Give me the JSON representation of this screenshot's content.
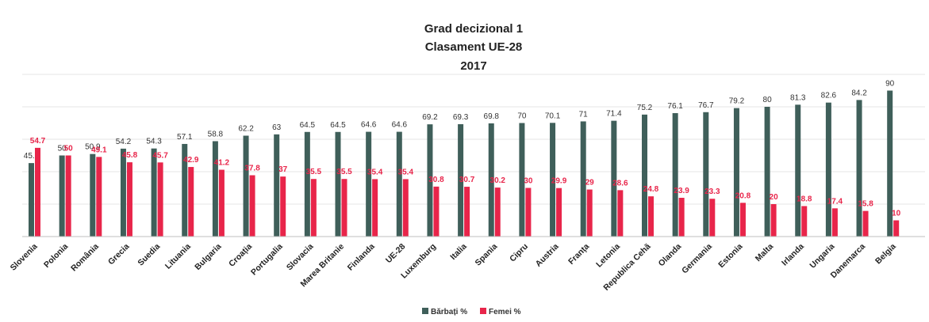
{
  "chart_data": {
    "type": "bar",
    "title": [
      "Grad decizional 1",
      "Clasament UE-28",
      "2017"
    ],
    "categories": [
      "Slovenia",
      "Polonia",
      "România",
      "Grecia",
      "Suedia",
      "Lituania",
      "Bulgaria",
      "Croația",
      "Portugalia",
      "Slovacia",
      "Marea Britanie",
      "Finlanda",
      "UE-28",
      "Luxemburg",
      "Italia",
      "Spania",
      "Cipru",
      "Austria",
      "Franța",
      "Letonia",
      "Republica Cehă",
      "Olanda",
      "Germania",
      "Estonia",
      "Malta",
      "Irlanda",
      "Ungaria",
      "Danemarca",
      "Belgia"
    ],
    "series": [
      {
        "name": "Bărbați %",
        "color": "#3f5f5a",
        "label_color": "#333333",
        "values": [
          45.3,
          50,
          50.9,
          54.2,
          54.3,
          57.1,
          58.8,
          62.2,
          63,
          64.5,
          64.5,
          64.6,
          64.6,
          69.2,
          69.3,
          69.8,
          70,
          70.1,
          71,
          71.4,
          75.2,
          76.1,
          76.7,
          79.2,
          80,
          81.3,
          82.6,
          84.2,
          90
        ]
      },
      {
        "name": "Femei %",
        "color": "#e8254a",
        "label_color": "#e8254a",
        "values": [
          54.7,
          50,
          49.1,
          45.8,
          45.7,
          42.9,
          41.2,
          37.8,
          37,
          35.5,
          35.5,
          35.4,
          35.4,
          30.8,
          30.7,
          30.2,
          30,
          29.9,
          29,
          28.6,
          24.8,
          23.9,
          23.3,
          20.8,
          20,
          18.8,
          17.4,
          15.8,
          10
        ]
      }
    ],
    "ylim": [
      0,
      100
    ],
    "grid": true,
    "legend": "bottom"
  }
}
